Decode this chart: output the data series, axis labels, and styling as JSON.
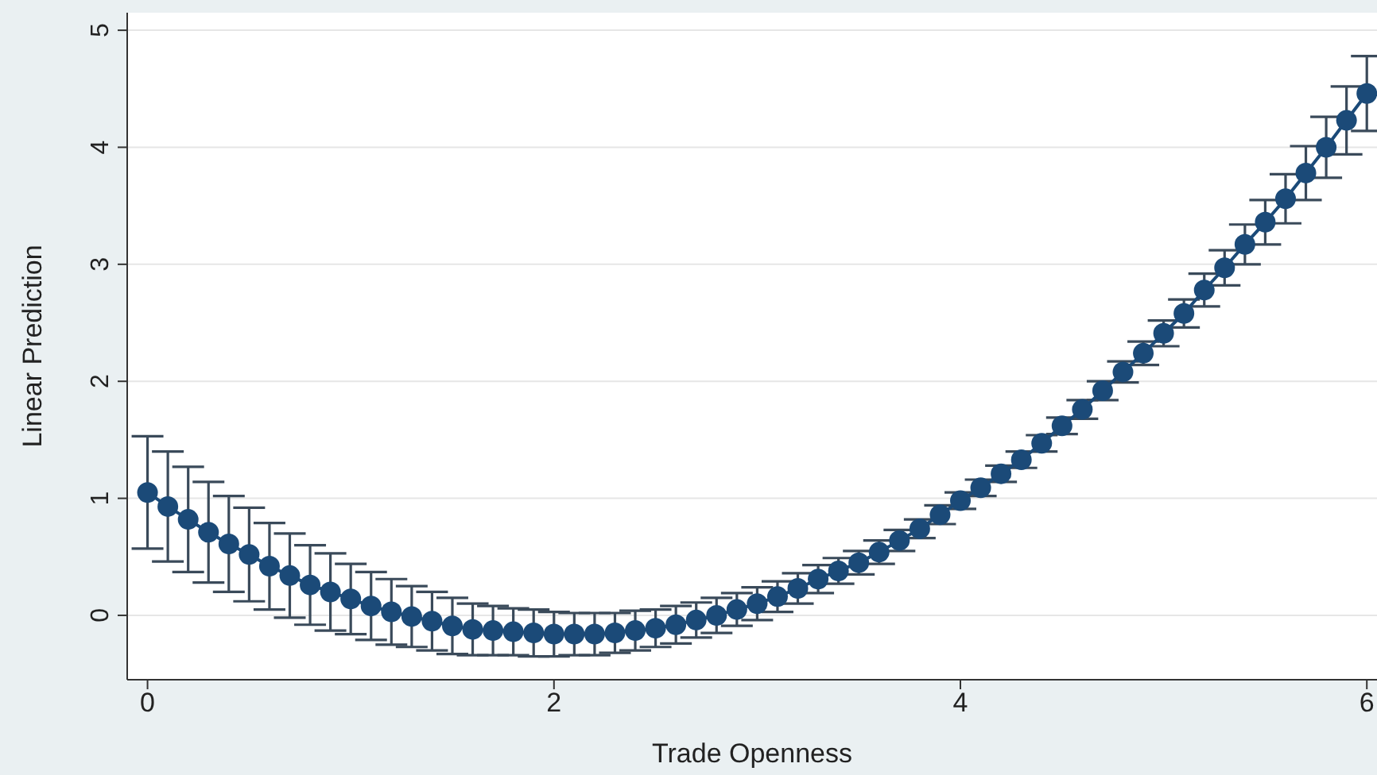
{
  "chart_data": {
    "type": "line",
    "xlabel": "Trade Openness",
    "ylabel": "Linear Prediction",
    "x": [
      0,
      0.1,
      0.2,
      0.3,
      0.4,
      0.5,
      0.6,
      0.7,
      0.8,
      0.9,
      1,
      1.1,
      1.2,
      1.3,
      1.4,
      1.5,
      1.6,
      1.7,
      1.8,
      1.9,
      2,
      2.1,
      2.2,
      2.3,
      2.4,
      2.5,
      2.6,
      2.7,
      2.8,
      2.9,
      3,
      3.1,
      3.2,
      3.3,
      3.4,
      3.5,
      3.6,
      3.7,
      3.8,
      3.9,
      4,
      4.1,
      4.2,
      4.3,
      4.4,
      4.5,
      4.6,
      4.7,
      4.8,
      4.9,
      5,
      5.1,
      5.2,
      5.3,
      5.4,
      5.5,
      5.6,
      5.7,
      5.8,
      5.9,
      6
    ],
    "series": [
      {
        "color": "#1b4a78",
        "values": [
          1.05,
          0.93,
          0.82,
          0.71,
          0.61,
          0.52,
          0.42,
          0.34,
          0.26,
          0.2,
          0.14,
          0.08,
          0.03,
          -0.01,
          -0.05,
          -0.09,
          -0.12,
          -0.13,
          -0.14,
          -0.15,
          -0.16,
          -0.16,
          -0.16,
          -0.15,
          -0.13,
          -0.11,
          -0.08,
          -0.04,
          0.0,
          0.05,
          0.1,
          0.16,
          0.23,
          0.31,
          0.38,
          0.45,
          0.54,
          0.64,
          0.74,
          0.86,
          0.98,
          1.09,
          1.21,
          1.33,
          1.47,
          1.62,
          1.76,
          1.92,
          2.08,
          2.24,
          2.41,
          2.58,
          2.78,
          2.97,
          3.17,
          3.36,
          3.56,
          3.78,
          4.0,
          4.23,
          4.46
        ],
        "errors": [
          0.48,
          0.47,
          0.45,
          0.43,
          0.41,
          0.4,
          0.37,
          0.36,
          0.34,
          0.33,
          0.3,
          0.29,
          0.28,
          0.26,
          0.25,
          0.24,
          0.22,
          0.21,
          0.2,
          0.2,
          0.19,
          0.18,
          0.18,
          0.17,
          0.17,
          0.16,
          0.16,
          0.15,
          0.15,
          0.14,
          0.14,
          0.13,
          0.13,
          0.12,
          0.11,
          0.1,
          0.1,
          0.09,
          0.08,
          0.08,
          0.07,
          0.07,
          0.07,
          0.07,
          0.07,
          0.07,
          0.08,
          0.08,
          0.09,
          0.1,
          0.11,
          0.12,
          0.14,
          0.15,
          0.17,
          0.19,
          0.21,
          0.23,
          0.26,
          0.29,
          0.32
        ]
      }
    ],
    "xlim": [
      -0.1,
      6.05
    ],
    "xticks": [
      0,
      2,
      4,
      6
    ],
    "ylim": [
      -0.55,
      5.15
    ],
    "yticks": [
      0,
      1,
      2,
      3,
      4,
      5
    ],
    "grid": "y",
    "marker": "circle",
    "line_style": "solid"
  }
}
